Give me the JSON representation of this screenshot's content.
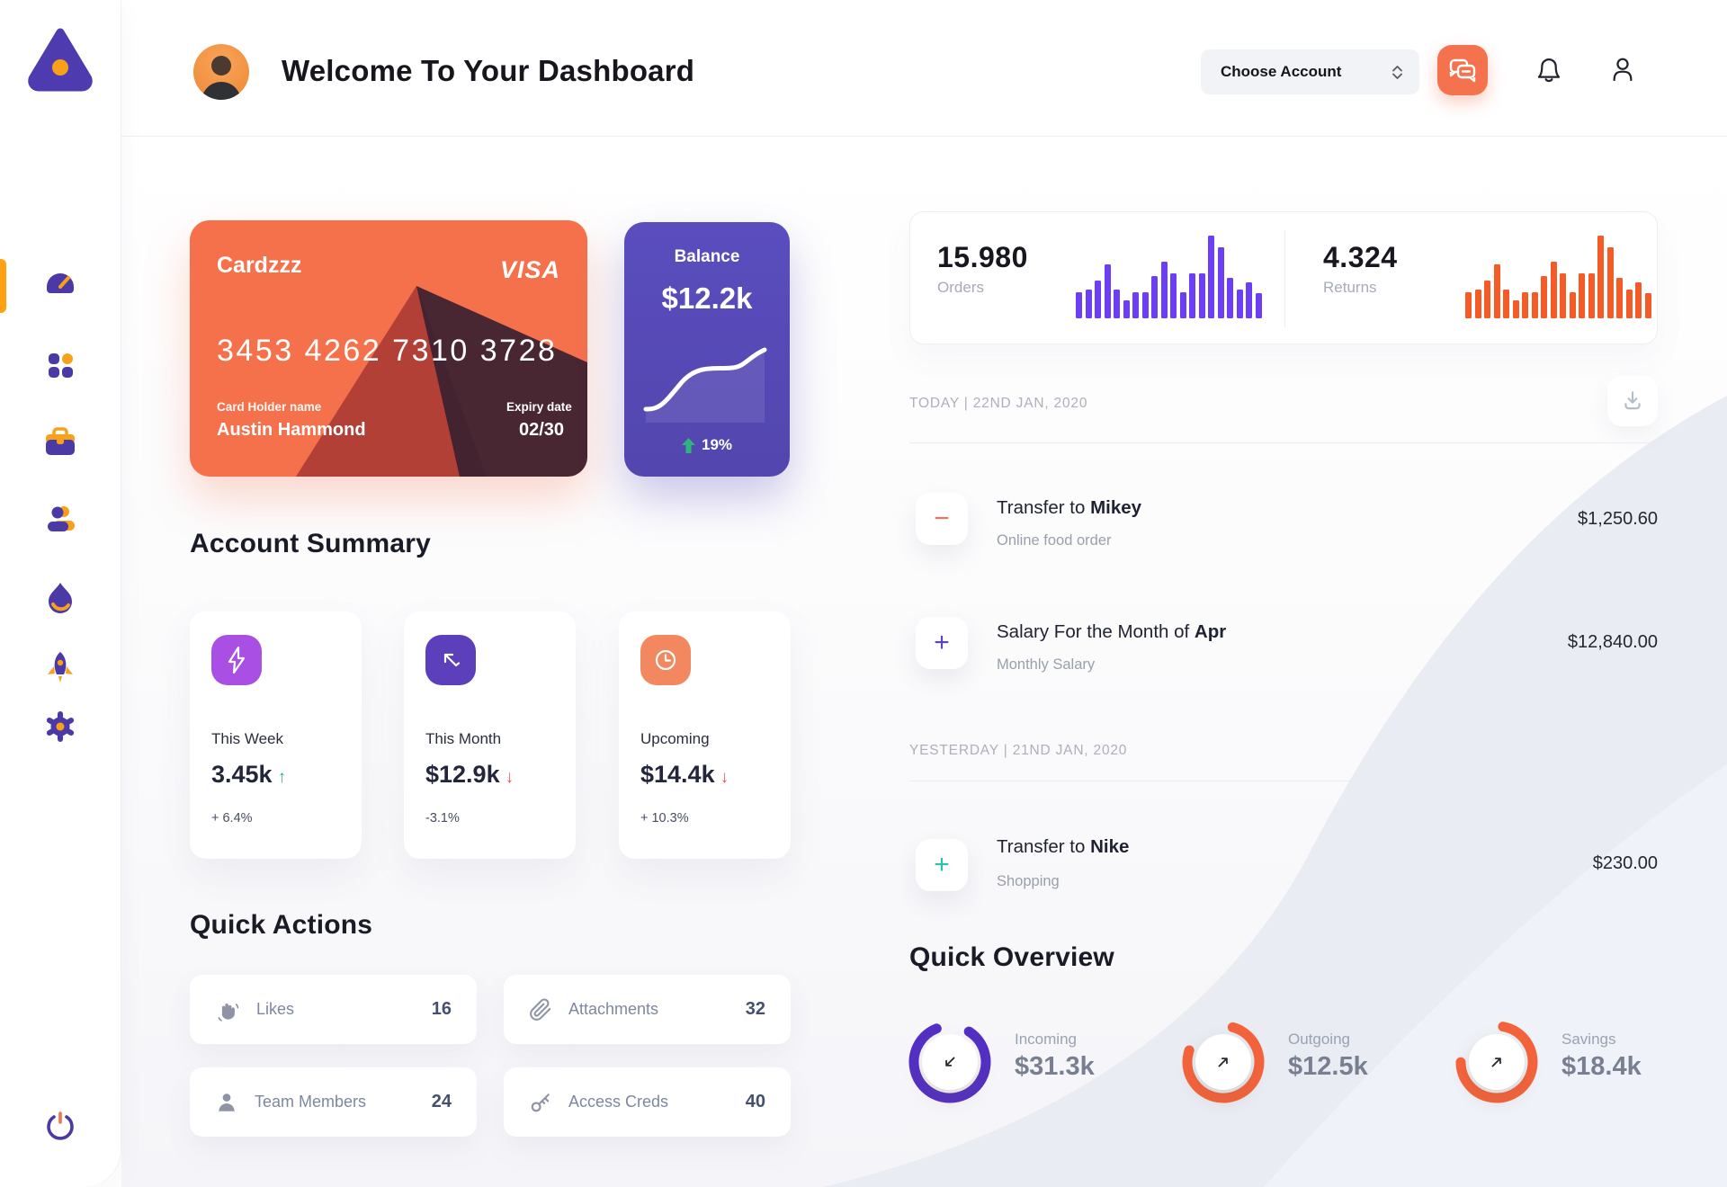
{
  "colors": {
    "accent_orange": "#F4714B",
    "amber": "#FFA113",
    "purple": "#4B3AA6",
    "balance_purple": "#5A4DBE",
    "bar_purple": "#6C3EF4",
    "bar_orange": "#F45B26",
    "green": "#2EB57F",
    "red": "#E25C55",
    "teal": "#2BC1A7"
  },
  "sidebar": {
    "logo_icon": "triangle-logo-icon",
    "items": [
      {
        "icon": "dashboard-gauge-icon",
        "active": true
      },
      {
        "icon": "apps-grid-icon",
        "active": false
      },
      {
        "icon": "briefcase-icon",
        "active": false
      },
      {
        "icon": "users-icon",
        "active": false
      },
      {
        "icon": "flame-icon",
        "active": false
      },
      {
        "icon": "rocket-icon",
        "active": false
      },
      {
        "icon": "settings-gear-icon",
        "active": false
      }
    ],
    "power_icon": "power-icon"
  },
  "header": {
    "title": "Welcome To Your Dashboard",
    "account_select_label": "Choose Account",
    "icons": [
      "chat-icon",
      "bell-icon",
      "user-icon"
    ]
  },
  "card": {
    "name": "Cardzzz",
    "brand": "VISA",
    "number": "3453 4262 7310 3728",
    "holder_label": "Card Holder name",
    "holder": "Austin Hammond",
    "expiry_label": "Expiry date",
    "expiry": "02/30"
  },
  "balance": {
    "label": "Balance",
    "value": "$12.2k",
    "delta": "19%"
  },
  "account_summary": {
    "title": "Account Summary",
    "cards": [
      {
        "icon": "lightning-icon",
        "icon_bg": "#A94FE3",
        "label": "This Week",
        "value": "3.45k",
        "arrow_char": "↑",
        "arrow_color": "#2EB57F",
        "delta": "+ 6.4%"
      },
      {
        "icon": "trend-arrow-icon",
        "icon_bg": "#5B3FBB",
        "label": "This Month",
        "value": "$12.9k",
        "arrow_char": "↓",
        "arrow_color": "#E25C55",
        "delta": "-3.1%"
      },
      {
        "icon": "clock-icon",
        "icon_bg": "#F3875F",
        "label": "Upcoming",
        "value": "$14.4k",
        "arrow_char": "↓",
        "arrow_color": "#E25C55",
        "delta": "+ 10.3%"
      }
    ]
  },
  "quick_actions": {
    "title": "Quick Actions",
    "items": [
      {
        "icon": "clap-icon",
        "label": "Likes",
        "count": "16"
      },
      {
        "icon": "paperclip-icon",
        "label": "Attachments",
        "count": "32"
      },
      {
        "icon": "member-icon",
        "label": "Team Members",
        "count": "24"
      },
      {
        "icon": "key-icon",
        "label": "Access Creds",
        "count": "40"
      }
    ]
  },
  "stats": {
    "orders": {
      "value": "15.980",
      "label": "Orders",
      "color": "#6C3EF4",
      "bars": [
        32,
        35,
        46,
        65,
        35,
        22,
        32,
        32,
        51,
        68,
        54,
        32,
        54,
        54,
        100,
        86,
        49,
        35,
        43,
        30
      ]
    },
    "returns": {
      "value": "4.324",
      "label": "Returns",
      "color": "#F45B26",
      "bars": [
        32,
        35,
        46,
        65,
        35,
        22,
        32,
        32,
        51,
        68,
        54,
        32,
        54,
        54,
        100,
        86,
        49,
        35,
        43,
        30
      ]
    }
  },
  "transactions": {
    "today_label": "TODAY | 22ND JAN, 2020",
    "yesterday_label": "YESTERDAY | 21ND JAN, 2020",
    "download_icon": "download-icon",
    "rows": [
      {
        "icon_symbol": "−",
        "icon_color": "#F4724D",
        "title_prefix": "Transfer to ",
        "title_bold": "Mikey",
        "subtitle": "Online food order",
        "amount": "$1,250.60"
      },
      {
        "icon_symbol": "+",
        "icon_color": "#5B3FD6",
        "title_prefix": "Salary For the Month of ",
        "title_bold": "Apr",
        "subtitle": "Monthly Salary",
        "amount": "$12,840.00"
      },
      {
        "icon_symbol": "+",
        "icon_color": "#2BC1A7",
        "title_prefix": "Transfer to ",
        "title_bold": "Nike",
        "subtitle": "Shopping",
        "amount": "$230.00"
      }
    ]
  },
  "quick_overview": {
    "title": "Quick Overview",
    "rings": [
      {
        "label": "Incoming",
        "value": "$31.3k",
        "pct": 85,
        "color": "#5230C4",
        "arrow_icon": "down-left-arrow-icon"
      },
      {
        "label": "Outgoing",
        "value": "$12.5k",
        "pct": 76,
        "color": "#F4643C",
        "arrow_icon": "up-right-arrow-icon"
      },
      {
        "label": "Savings",
        "value": "$18.4k",
        "pct": 72,
        "color": "#F4643C",
        "arrow_icon": "up-right-arrow-icon"
      }
    ]
  }
}
